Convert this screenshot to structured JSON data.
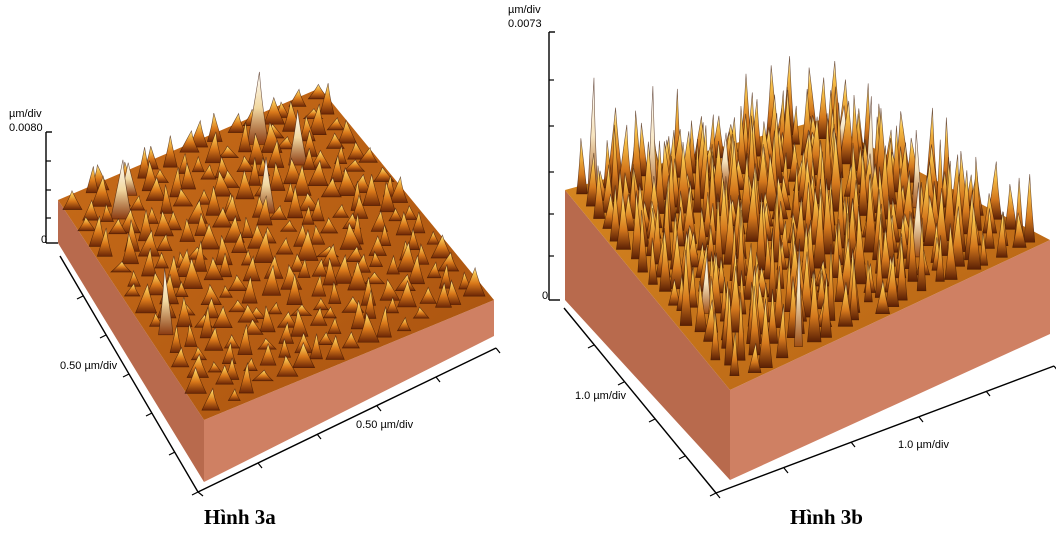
{
  "panel_a": {
    "z_unit": "µm/div",
    "z_max": "0.0080",
    "z_zero": "0",
    "y_axis_label": "0.50 µm/div",
    "x_axis_label": "0.50 µm/div",
    "caption": "Hình 3a"
  },
  "panel_b": {
    "z_unit": "µm/div",
    "z_max": "0.0073",
    "z_zero": "0",
    "y_axis_label": "1.0 µm/div",
    "x_axis_label": "1.0 µm/div",
    "caption": "Hình 3b"
  },
  "colors": {
    "surface_dark": "#7a2f08",
    "surface_mid": "#e8901f",
    "surface_light": "#fbe7a8",
    "side_face": "#cf8063",
    "side_face_dark": "#b8684b"
  }
}
